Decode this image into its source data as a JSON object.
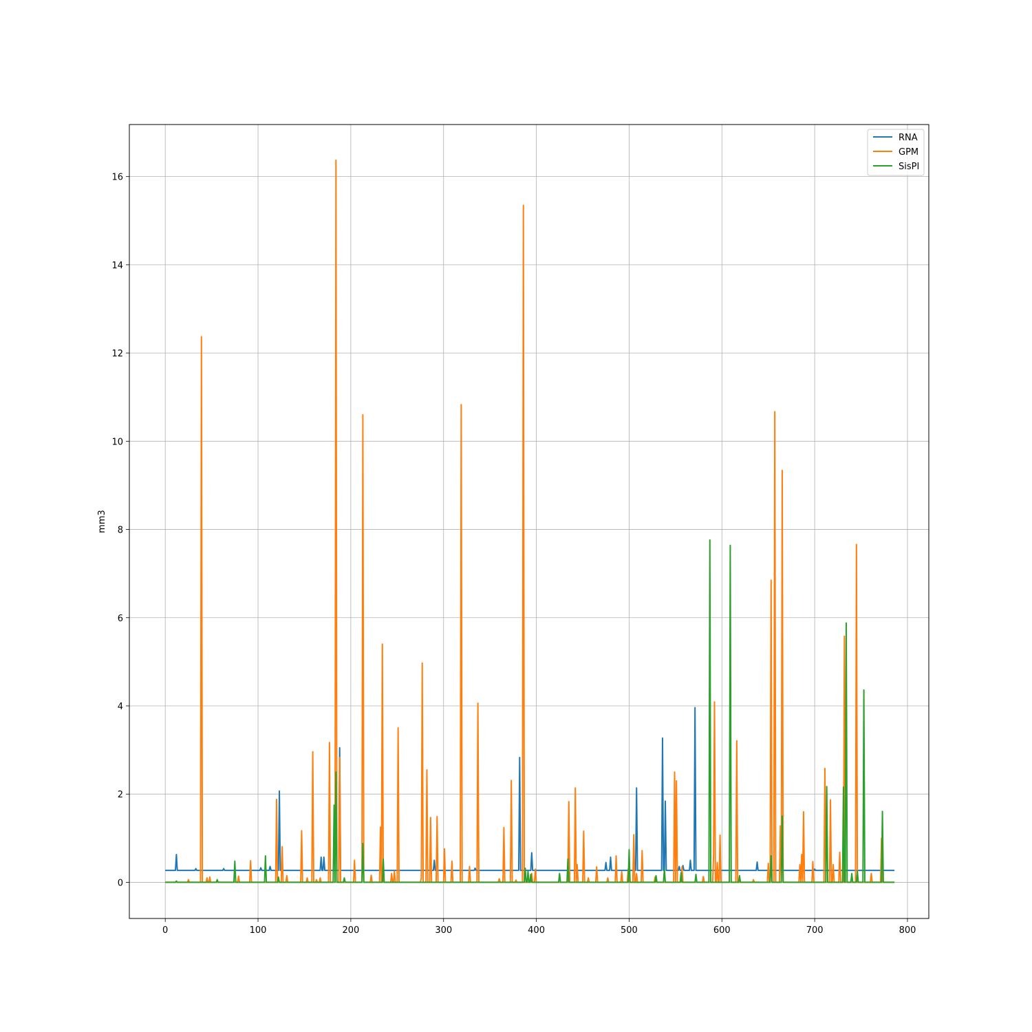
{
  "chart_data": {
    "type": "line",
    "title": "",
    "xlabel": "",
    "ylabel": "mm3",
    "xlim": [
      -38.7,
      823
    ],
    "ylim": [
      -0.82,
      17.18
    ],
    "xticks": [
      0,
      100,
      200,
      300,
      400,
      500,
      600,
      700,
      800
    ],
    "yticks": [
      0,
      2,
      4,
      6,
      8,
      10,
      12,
      14,
      16
    ],
    "x_range": [
      0,
      786
    ],
    "grid": true,
    "legend_position": "upper right",
    "series": [
      {
        "name": "RNA",
        "color": "#1f77b4",
        "baseline": 0.27,
        "peaks": [
          [
            12,
            0.63
          ],
          [
            33,
            0.31
          ],
          [
            63,
            0.31
          ],
          [
            103,
            0.33
          ],
          [
            113,
            0.36
          ],
          [
            123,
            2.07
          ],
          [
            168,
            0.57
          ],
          [
            171,
            0.57
          ],
          [
            188,
            3.05
          ],
          [
            290,
            0.5
          ],
          [
            334,
            0.32
          ],
          [
            382,
            2.83
          ],
          [
            395,
            0.67
          ],
          [
            475,
            0.45
          ],
          [
            480,
            0.57
          ],
          [
            508,
            2.14
          ],
          [
            536,
            3.27
          ],
          [
            539,
            1.84
          ],
          [
            554,
            0.36
          ],
          [
            558,
            0.38
          ],
          [
            566,
            0.5
          ],
          [
            571,
            3.96
          ],
          [
            638,
            0.46
          ],
          [
            700,
            0.3
          ],
          [
            732,
            0.6
          ]
        ]
      },
      {
        "name": "GPM",
        "color": "#ff7f0e",
        "baseline": 0.0,
        "peaks": [
          [
            25,
            0.06
          ],
          [
            39,
            12.37
          ],
          [
            45,
            0.1
          ],
          [
            48,
            0.12
          ],
          [
            79,
            0.14
          ],
          [
            92,
            0.49
          ],
          [
            120,
            1.88
          ],
          [
            126,
            0.81
          ],
          [
            131,
            0.15
          ],
          [
            147,
            1.17
          ],
          [
            153,
            0.1
          ],
          [
            159,
            2.96
          ],
          [
            163,
            0.06
          ],
          [
            167,
            0.1
          ],
          [
            177,
            3.17
          ],
          [
            184,
            16.37
          ],
          [
            188,
            2.83
          ],
          [
            204,
            0.5
          ],
          [
            213,
            10.6
          ],
          [
            222,
            0.16
          ],
          [
            232,
            1.25
          ],
          [
            234,
            5.4
          ],
          [
            244,
            0.2
          ],
          [
            247,
            0.25
          ],
          [
            251,
            3.5
          ],
          [
            276,
            0.1
          ],
          [
            277,
            4.97
          ],
          [
            282,
            2.55
          ],
          [
            286,
            1.47
          ],
          [
            293,
            1.49
          ],
          [
            301,
            0.76
          ],
          [
            309,
            0.48
          ],
          [
            319,
            10.83
          ],
          [
            328,
            0.36
          ],
          [
            337,
            4.06
          ],
          [
            360,
            0.08
          ],
          [
            365,
            1.24
          ],
          [
            373,
            2.31
          ],
          [
            378,
            0.05
          ],
          [
            386,
            15.35
          ],
          [
            395,
            0.2
          ],
          [
            399,
            0.3
          ],
          [
            435,
            1.83
          ],
          [
            442,
            2.14
          ],
          [
            444,
            0.4
          ],
          [
            451,
            1.16
          ],
          [
            456,
            0.1
          ],
          [
            465,
            0.35
          ],
          [
            477,
            0.1
          ],
          [
            486,
            0.6
          ],
          [
            492,
            0.24
          ],
          [
            499,
            0.3
          ],
          [
            505,
            1.08
          ],
          [
            508,
            0.2
          ],
          [
            514,
            0.72
          ],
          [
            528,
            0.12
          ],
          [
            549,
            2.5
          ],
          [
            551,
            2.3
          ],
          [
            557,
            0.35
          ],
          [
            580,
            0.13
          ],
          [
            591,
            0.6
          ],
          [
            592,
            4.09
          ],
          [
            595,
            0.45
          ],
          [
            598,
            1.07
          ],
          [
            616,
            3.21
          ],
          [
            634,
            0.06
          ],
          [
            650,
            0.43
          ],
          [
            653,
            6.85
          ],
          [
            657,
            10.67
          ],
          [
            663,
            1.28
          ],
          [
            665,
            9.34
          ],
          [
            684,
            0.4
          ],
          [
            686,
            0.63
          ],
          [
            688,
            1.6
          ],
          [
            698,
            0.47
          ],
          [
            711,
            2.58
          ],
          [
            717,
            1.87
          ],
          [
            720,
            0.4
          ],
          [
            727,
            0.68
          ],
          [
            732,
            5.58
          ],
          [
            745,
            7.66
          ],
          [
            761,
            0.2
          ],
          [
            772,
            1.0
          ]
        ]
      },
      {
        "name": "SisPI",
        "color": "#2ca02c",
        "baseline": 0.0,
        "peaks": [
          [
            12,
            0.03
          ],
          [
            56,
            0.06
          ],
          [
            75,
            0.48
          ],
          [
            108,
            0.6
          ],
          [
            122,
            0.12
          ],
          [
            182,
            1.75
          ],
          [
            184,
            2.5
          ],
          [
            193,
            0.1
          ],
          [
            213,
            0.88
          ],
          [
            235,
            0.53
          ],
          [
            388,
            0.32
          ],
          [
            391,
            0.25
          ],
          [
            394,
            0.18
          ],
          [
            425,
            0.2
          ],
          [
            434,
            0.53
          ],
          [
            500,
            0.74
          ],
          [
            529,
            0.15
          ],
          [
            538,
            0.3
          ],
          [
            556,
            0.22
          ],
          [
            572,
            0.18
          ],
          [
            587,
            7.76
          ],
          [
            609,
            7.64
          ],
          [
            619,
            0.15
          ],
          [
            653,
            0.6
          ],
          [
            665,
            1.5
          ],
          [
            713,
            2.17
          ],
          [
            731,
            2.16
          ],
          [
            734,
            5.88
          ],
          [
            740,
            0.2
          ],
          [
            746,
            0.25
          ],
          [
            753,
            4.36
          ],
          [
            773,
            1.61
          ]
        ]
      }
    ]
  }
}
